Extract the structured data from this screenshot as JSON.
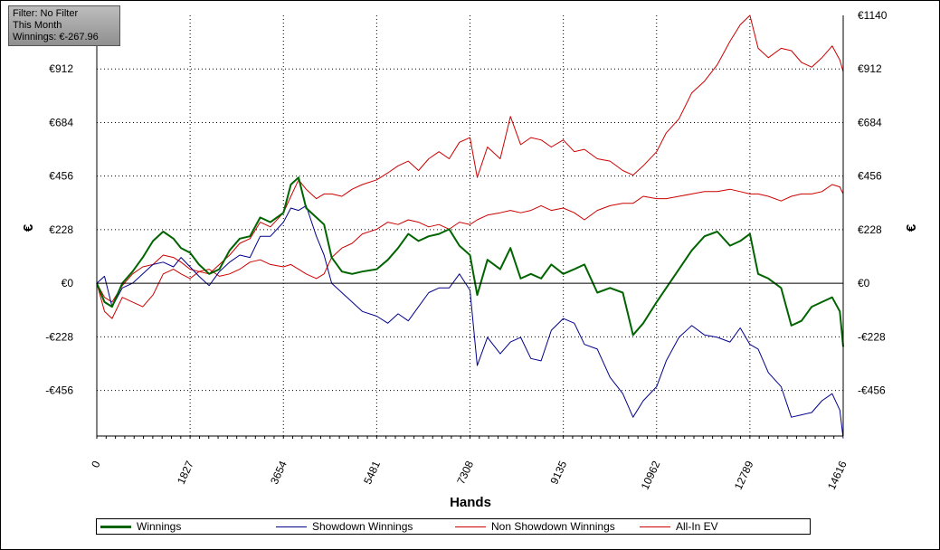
{
  "filter_box": {
    "filter": "Filter: No Filter",
    "period": "This Month",
    "winnings": "Winnings: €-267.96"
  },
  "chart_data": {
    "type": "line",
    "title": "",
    "xlabel": "Hands",
    "ylabel": "€",
    "ylabel_right": "€",
    "xlim": [
      0,
      14616
    ],
    "ylim": [
      -650,
      1140
    ],
    "x_ticks": [
      0,
      1827,
      3654,
      5481,
      7308,
      9135,
      10962,
      12789,
      14616
    ],
    "x_tick_labels": [
      "0",
      "1827",
      "3654",
      "5481",
      "7308",
      "9135",
      "10962",
      "12789",
      "14616"
    ],
    "y_ticks": [
      -456,
      -228,
      0,
      228,
      456,
      684,
      912
    ],
    "y_tick_labels": [
      "-€456",
      "-€228",
      "€0",
      "€228",
      "€456",
      "€684",
      "€912"
    ],
    "y_ticks_right": [
      -456,
      -228,
      0,
      228,
      456,
      684,
      912,
      1140
    ],
    "y_tick_labels_right": [
      "-€456",
      "-€228",
      "€0",
      "€228",
      "€456",
      "€684",
      "€912",
      "€1140"
    ],
    "grid": true,
    "legend_position": "bottom",
    "colors": {
      "Winnings": "#006400",
      "Showdown Winnings": "#00008b",
      "Non Showdown Winnings": "#cc0000",
      "All-In EV": "#cc0000",
      "zero_line": "#000000",
      "grid": "#000000"
    },
    "series": [
      {
        "name": "Winnings",
        "x": [
          0,
          150,
          300,
          500,
          700,
          900,
          1100,
          1300,
          1500,
          1650,
          1827,
          2000,
          2200,
          2400,
          2600,
          2800,
          3000,
          3200,
          3400,
          3654,
          3800,
          3950,
          4100,
          4300,
          4450,
          4600,
          4800,
          5000,
          5200,
          5481,
          5700,
          5900,
          6100,
          6300,
          6500,
          6700,
          6900,
          7100,
          7308,
          7450,
          7650,
          7900,
          8100,
          8300,
          8500,
          8700,
          8900,
          9135,
          9350,
          9550,
          9800,
          10050,
          10300,
          10500,
          10700,
          10962,
          11150,
          11400,
          11650,
          11900,
          12150,
          12400,
          12600,
          12789,
          12950,
          13150,
          13400,
          13600,
          13800,
          14000,
          14200,
          14400,
          14550,
          14616
        ],
        "values": [
          0,
          -80,
          -100,
          0,
          50,
          110,
          180,
          220,
          190,
          150,
          130,
          80,
          40,
          60,
          140,
          190,
          200,
          280,
          260,
          300,
          420,
          450,
          320,
          280,
          250,
          110,
          50,
          40,
          50,
          60,
          100,
          150,
          210,
          180,
          200,
          210,
          230,
          160,
          120,
          -50,
          100,
          60,
          150,
          20,
          40,
          20,
          80,
          40,
          60,
          80,
          -40,
          -20,
          -40,
          -220,
          -170,
          -80,
          -20,
          60,
          140,
          200,
          220,
          160,
          180,
          210,
          40,
          20,
          -20,
          -180,
          -160,
          -100,
          -80,
          -60,
          -120,
          -270
        ]
      },
      {
        "name": "Showdown Winnings",
        "x": [
          0,
          150,
          300,
          500,
          700,
          900,
          1100,
          1300,
          1500,
          1650,
          1827,
          2000,
          2200,
          2400,
          2600,
          2800,
          3000,
          3200,
          3400,
          3654,
          3800,
          3950,
          4100,
          4300,
          4450,
          4600,
          4800,
          5000,
          5200,
          5481,
          5700,
          5900,
          6100,
          6300,
          6500,
          6700,
          6900,
          7100,
          7308,
          7450,
          7650,
          7900,
          8100,
          8300,
          8500,
          8700,
          8900,
          9135,
          9350,
          9550,
          9800,
          10050,
          10300,
          10500,
          10700,
          10962,
          11150,
          11400,
          11650,
          11900,
          12150,
          12400,
          12600,
          12789,
          12950,
          13150,
          13400,
          13600,
          13800,
          14000,
          14200,
          14400,
          14550,
          14616
        ],
        "values": [
          0,
          30,
          -100,
          -20,
          0,
          40,
          80,
          90,
          70,
          110,
          70,
          30,
          -10,
          50,
          90,
          120,
          110,
          200,
          200,
          260,
          320,
          310,
          330,
          200,
          120,
          0,
          -40,
          -80,
          -120,
          -140,
          -170,
          -130,
          -160,
          -100,
          -40,
          -20,
          -20,
          40,
          -30,
          -350,
          -230,
          -300,
          -250,
          -230,
          -320,
          -330,
          -200,
          -150,
          -170,
          -260,
          -280,
          -400,
          -470,
          -570,
          -500,
          -440,
          -330,
          -230,
          -180,
          -220,
          -230,
          -250,
          -190,
          -260,
          -280,
          -380,
          -440,
          -570,
          -560,
          -550,
          -500,
          -470,
          -540,
          -660
        ]
      },
      {
        "name": "Non Showdown Winnings",
        "x": [
          0,
          150,
          300,
          500,
          700,
          900,
          1100,
          1300,
          1500,
          1650,
          1827,
          2000,
          2200,
          2400,
          2600,
          2800,
          3000,
          3200,
          3400,
          3654,
          3800,
          3950,
          4100,
          4300,
          4450,
          4600,
          4800,
          5000,
          5200,
          5481,
          5700,
          5900,
          6100,
          6300,
          6500,
          6700,
          6900,
          7100,
          7308,
          7450,
          7650,
          7900,
          8100,
          8300,
          8500,
          8700,
          8900,
          9135,
          9350,
          9550,
          9800,
          10050,
          10300,
          10500,
          10700,
          10962,
          11150,
          11400,
          11650,
          11900,
          12150,
          12400,
          12600,
          12789,
          12950,
          13150,
          13400,
          13600,
          13800,
          14000,
          14200,
          14400,
          14550,
          14616
        ],
        "values": [
          0,
          -120,
          -150,
          -60,
          -80,
          -100,
          -50,
          40,
          60,
          40,
          20,
          50,
          60,
          30,
          40,
          60,
          90,
          100,
          80,
          70,
          80,
          60,
          40,
          20,
          40,
          110,
          150,
          170,
          210,
          230,
          260,
          250,
          270,
          260,
          240,
          250,
          230,
          260,
          250,
          270,
          290,
          300,
          310,
          300,
          310,
          330,
          310,
          320,
          300,
          270,
          310,
          330,
          340,
          340,
          370,
          360,
          360,
          370,
          380,
          390,
          390,
          400,
          390,
          380,
          380,
          370,
          350,
          370,
          380,
          380,
          390,
          420,
          410,
          380
        ]
      },
      {
        "name": "All-In EV",
        "x": [
          0,
          150,
          300,
          500,
          700,
          900,
          1100,
          1300,
          1500,
          1650,
          1827,
          2000,
          2200,
          2400,
          2600,
          2800,
          3000,
          3200,
          3400,
          3654,
          3800,
          3950,
          4100,
          4300,
          4450,
          4600,
          4800,
          5000,
          5200,
          5481,
          5700,
          5900,
          6100,
          6300,
          6500,
          6700,
          6900,
          7100,
          7308,
          7450,
          7650,
          7900,
          8100,
          8300,
          8500,
          8700,
          8900,
          9135,
          9350,
          9550,
          9800,
          10050,
          10300,
          10500,
          10700,
          10962,
          11150,
          11400,
          11650,
          11900,
          12150,
          12400,
          12600,
          12789,
          12950,
          13150,
          13400,
          13600,
          13800,
          14000,
          14200,
          14400,
          14550,
          14616
        ],
        "values": [
          0,
          -60,
          -80,
          -10,
          40,
          70,
          80,
          120,
          110,
          90,
          60,
          50,
          40,
          80,
          120,
          170,
          190,
          260,
          240,
          300,
          370,
          440,
          400,
          360,
          380,
          380,
          370,
          400,
          420,
          440,
          470,
          500,
          520,
          480,
          530,
          560,
          530,
          600,
          620,
          450,
          580,
          530,
          710,
          590,
          620,
          610,
          580,
          610,
          560,
          570,
          530,
          520,
          480,
          460,
          500,
          560,
          640,
          700,
          810,
          860,
          930,
          1030,
          1100,
          1140,
          1000,
          960,
          1000,
          990,
          940,
          920,
          960,
          1010,
          950,
          900
        ]
      }
    ]
  },
  "legend": [
    {
      "name": "Winnings",
      "color": "#006400"
    },
    {
      "name": "Showdown Winnings",
      "color": "#00008b"
    },
    {
      "name": "Non Showdown Winnings",
      "color": "#cc0000"
    },
    {
      "name": "All-In EV",
      "color": "#cc0000"
    }
  ]
}
